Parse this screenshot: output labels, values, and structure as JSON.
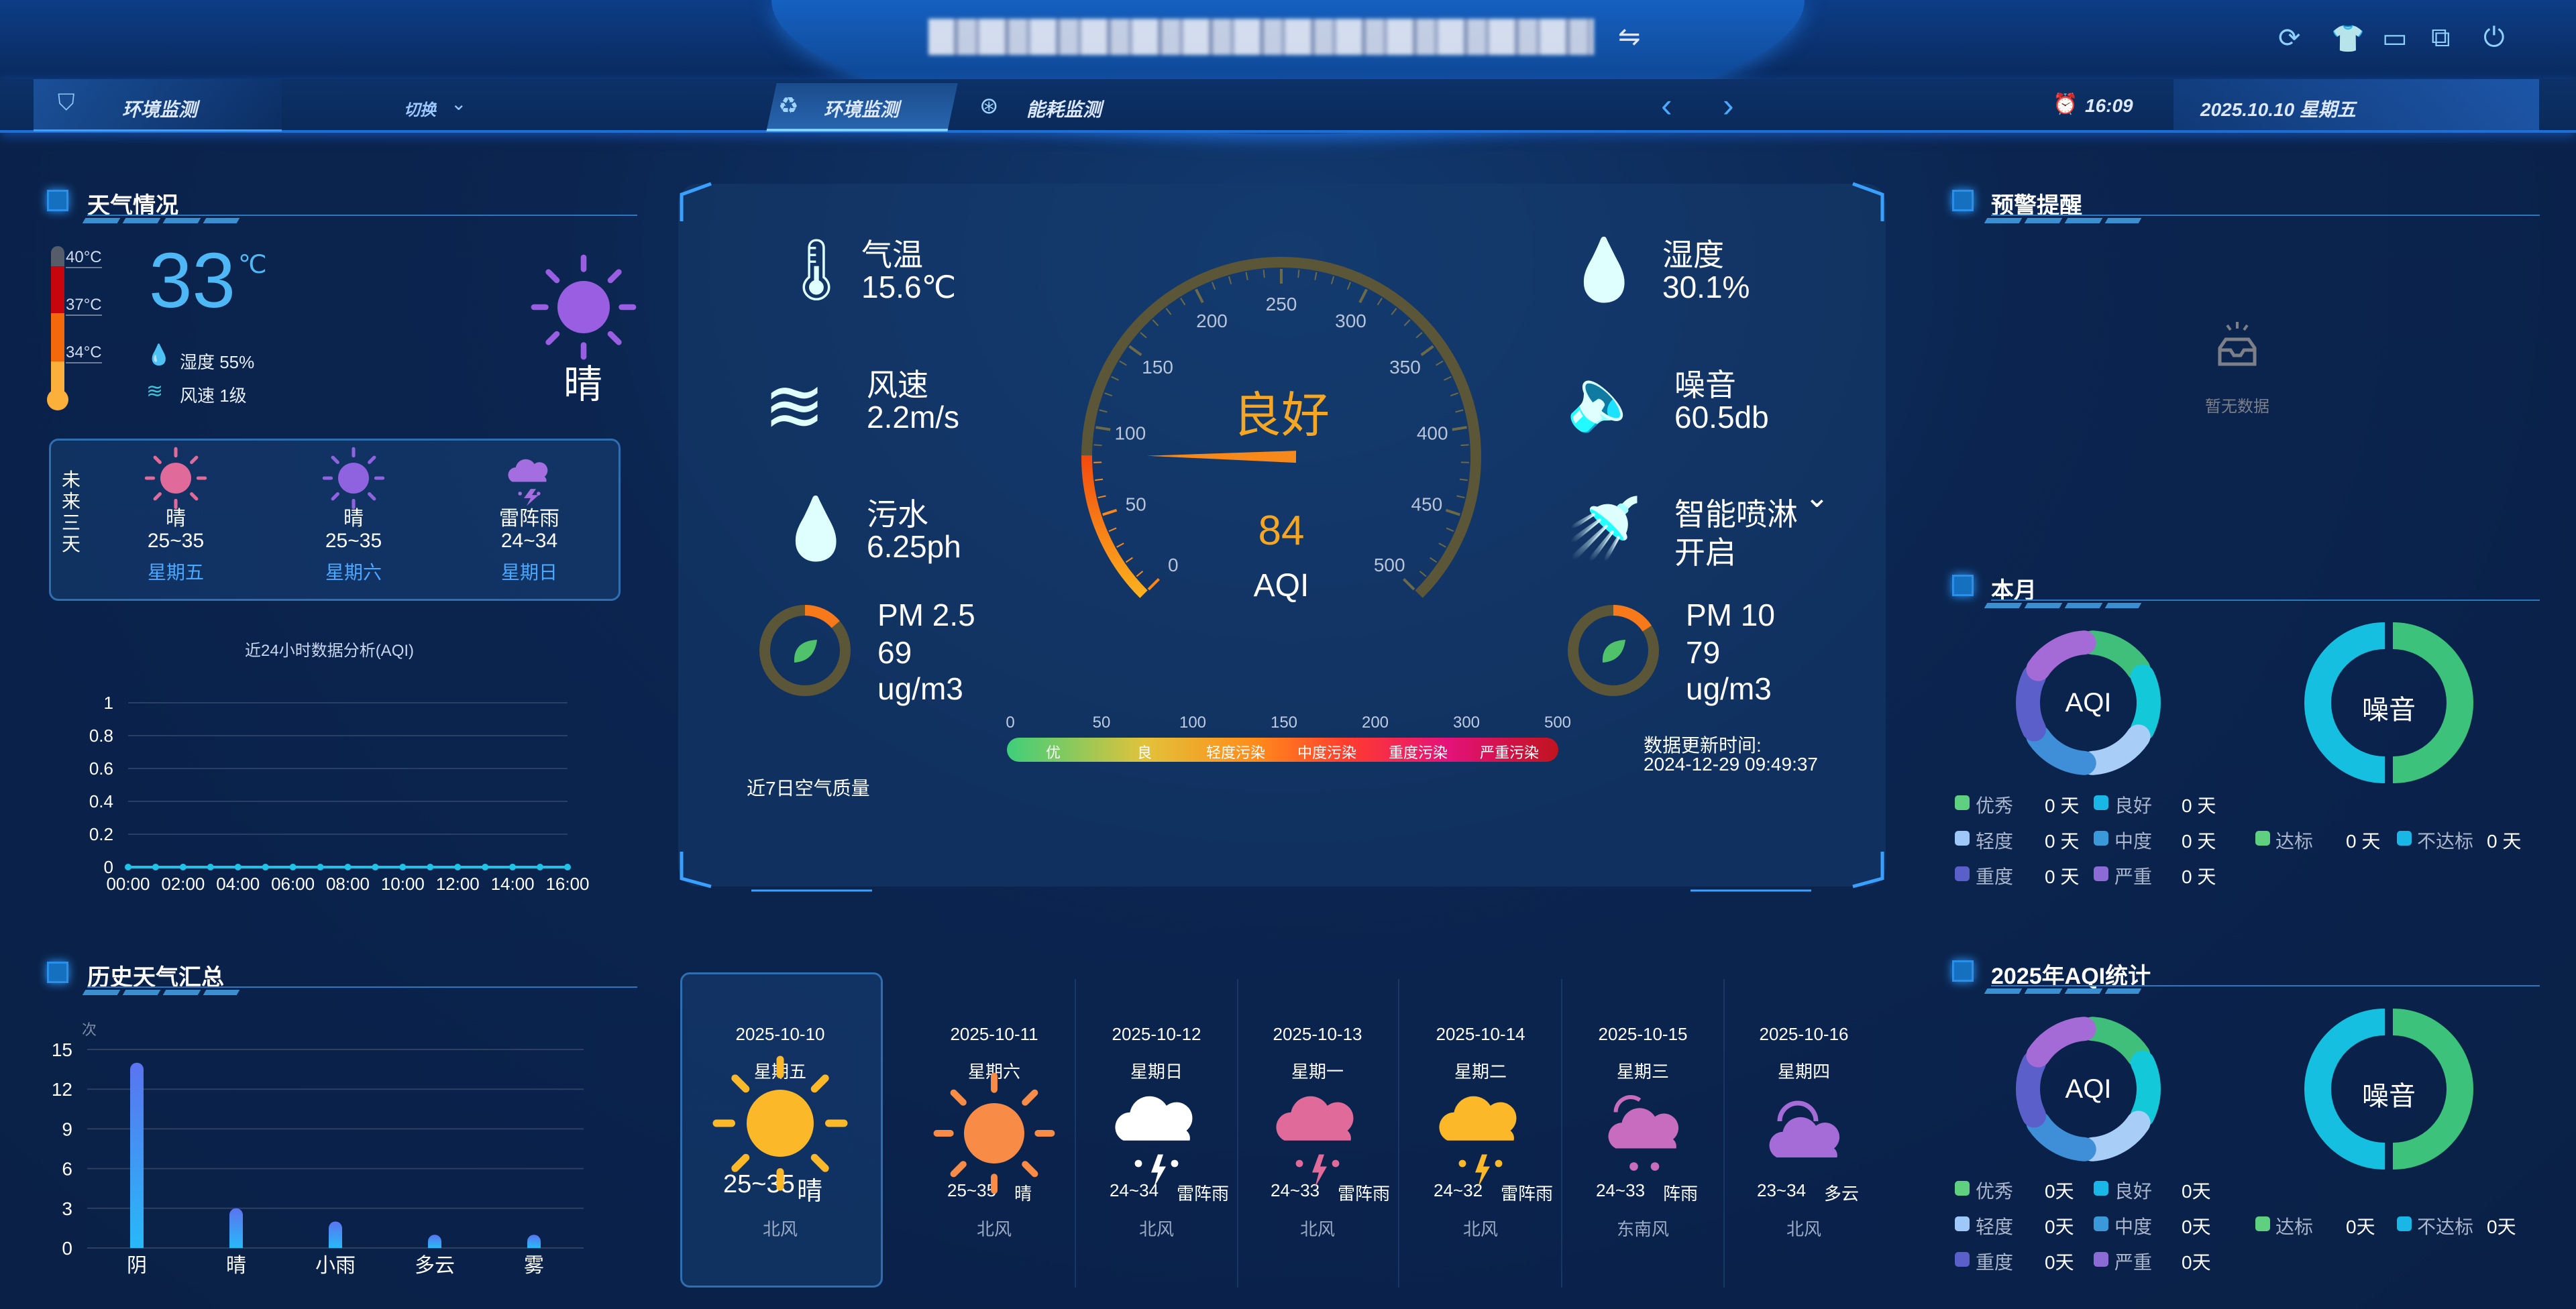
{
  "header": {
    "title_blurred": true,
    "switch_icon": "swap-arrows-icon",
    "module_label": "环境监测",
    "switch_label": "切换",
    "tabs": [
      {
        "label": "环境监测",
        "active": true,
        "icon": "recycle-icon"
      },
      {
        "label": "能耗监测",
        "active": false,
        "icon": "energy-icon"
      }
    ],
    "time": "16:09",
    "date": "2025.10.10 星期五",
    "toolbar_icons": [
      "refresh-icon",
      "shirt-icon",
      "monitor-icon",
      "screen-icon",
      "power-icon"
    ]
  },
  "weather": {
    "title": "天气情况",
    "thermo_labels": [
      "40°C",
      "37°C",
      "34°C"
    ],
    "temp": "33",
    "temp_unit": "℃",
    "humidity": "湿度 55%",
    "wind": "风速 1级",
    "condition": "晴",
    "future_label": "未来三天",
    "future": [
      {
        "cond": "晴",
        "temp": "25~35",
        "day": "星期五",
        "icon": "sun",
        "color": "#e06a9a"
      },
      {
        "cond": "晴",
        "temp": "25~35",
        "day": "星期六",
        "icon": "sun",
        "color": "#8f62e0"
      },
      {
        "cond": "雷阵雨",
        "temp": "24~34",
        "day": "星期日",
        "icon": "thunder",
        "color": "#a56ee0"
      }
    ]
  },
  "aqi24": {
    "chart_data": {
      "type": "line",
      "title": "近24小时数据分析(AQI)",
      "x": [
        "00:00",
        "01:00",
        "02:00",
        "03:00",
        "04:00",
        "05:00",
        "06:00",
        "07:00",
        "08:00",
        "09:00",
        "10:00",
        "11:00",
        "12:00",
        "13:00",
        "14:00",
        "15:00",
        "16:00"
      ],
      "x_tick_labels": [
        "00:00",
        "02:00",
        "04:00",
        "06:00",
        "08:00",
        "10:00",
        "12:00",
        "14:00",
        "16:00"
      ],
      "values": [
        0,
        0,
        0,
        0,
        0,
        0,
        0,
        0,
        0,
        0,
        0,
        0,
        0,
        0,
        0,
        0,
        0
      ],
      "y_ticks": [
        "0",
        "0.2",
        "0.4",
        "0.6",
        "0.8",
        "1"
      ],
      "ylim": [
        0,
        1
      ],
      "grid": true,
      "color": "#1fc3e8"
    }
  },
  "history": {
    "title": "历史天气汇总",
    "chart_data": {
      "type": "bar",
      "ylabel": "次",
      "categories": [
        "阴",
        "晴",
        "小雨",
        "多云",
        "雾"
      ],
      "values": [
        14,
        3,
        2,
        1,
        1
      ],
      "y_ticks": [
        "0",
        "3",
        "6",
        "9",
        "12",
        "15"
      ],
      "ylim": [
        0,
        15
      ],
      "grid": true
    }
  },
  "center": {
    "left_items": [
      {
        "label": "气温",
        "value": "15.6℃",
        "icon": "thermometer-icon"
      },
      {
        "label": "风速",
        "value": "2.2m/s",
        "icon": "wind-icon"
      },
      {
        "label": "污水",
        "value": "6.25ph",
        "icon": "water-drop-icon"
      }
    ],
    "right_items": [
      {
        "label": "湿度",
        "value": "30.1%",
        "icon": "humidity-icon"
      },
      {
        "label": "噪音",
        "value": "60.5db",
        "icon": "speaker-icon"
      },
      {
        "label": "智能喷淋",
        "value": "开启",
        "icon": "shower-icon"
      }
    ],
    "pm25": {
      "label": "PM 2.5",
      "value": "69",
      "unit": "ug/m3"
    },
    "pm10": {
      "label": "PM 10",
      "value": "79",
      "unit": "ug/m3"
    },
    "gauge": {
      "status": "良好",
      "value": "84",
      "label": "AQI",
      "min": 0,
      "max": 500,
      "tick_labels": [
        "0",
        "50",
        "100",
        "150",
        "200",
        "250",
        "300",
        "350",
        "400",
        "450",
        "500"
      ],
      "status_color": "#f5a623"
    },
    "scale": {
      "numbers": [
        "0",
        "50",
        "100",
        "150",
        "200",
        "300",
        "500"
      ],
      "levels": [
        "优",
        "良",
        "轻度污染",
        "中度污染",
        "重度污染",
        "严重污染"
      ]
    },
    "update_label": "数据更新时间:",
    "update_time": "2024-12-29 09:49:37",
    "week_label": "近7日空气质量"
  },
  "forecast7": [
    {
      "date": "2025-10-10",
      "day": "星期五",
      "temp": "25~35",
      "cond": "晴",
      "wind": "北风",
      "icon": "sun",
      "color": "#fbb829"
    },
    {
      "date": "2025-10-11",
      "day": "星期六",
      "temp": "25~35",
      "cond": "晴",
      "wind": "北风",
      "icon": "sun",
      "color": "#f88b45"
    },
    {
      "date": "2025-10-12",
      "day": "星期日",
      "temp": "24~34",
      "cond": "雷阵雨",
      "wind": "北风",
      "icon": "thunder",
      "color": "#ffffff"
    },
    {
      "date": "2025-10-13",
      "day": "星期一",
      "temp": "24~33",
      "cond": "雷阵雨",
      "wind": "北风",
      "icon": "thunder",
      "color": "#e06a9a"
    },
    {
      "date": "2025-10-14",
      "day": "星期二",
      "temp": "24~32",
      "cond": "雷阵雨",
      "wind": "北风",
      "icon": "thunder",
      "color": "#fbb829"
    },
    {
      "date": "2025-10-15",
      "day": "星期三",
      "temp": "24~33",
      "cond": "阵雨",
      "wind": "东南风",
      "icon": "shower",
      "color": "#c86cc0"
    },
    {
      "date": "2025-10-16",
      "day": "星期四",
      "temp": "23~34",
      "cond": "多云",
      "wind": "北风",
      "icon": "cloudy",
      "color": "#a56bd6"
    }
  ],
  "alerts": {
    "title": "预警提醒",
    "empty_text": "暂无数据",
    "empty_icon": "empty-inbox-icon"
  },
  "stats": [
    {
      "title": "本月",
      "aqi_label": "AQI",
      "noise_label": "噪音",
      "aqi_legend": [
        {
          "name": "优秀",
          "value": "0 天",
          "color": "#5fd07f"
        },
        {
          "name": "良好",
          "value": "0 天",
          "color": "#19b7e6"
        },
        {
          "name": "轻度",
          "value": "0 天",
          "color": "#9ec8f7"
        },
        {
          "name": "中度",
          "value": "0 天",
          "color": "#3a9ad9"
        },
        {
          "name": "重度",
          "value": "0 天",
          "color": "#5a5fc9"
        },
        {
          "name": "严重",
          "value": "0 天",
          "color": "#8d6bd6"
        }
      ],
      "noise_legend": [
        {
          "name": "达标",
          "value": "0 天",
          "color": "#5fd07f"
        },
        {
          "name": "不达标",
          "value": "0 天",
          "color": "#19b7e6"
        }
      ]
    },
    {
      "title": "2025年AQI统计",
      "aqi_label": "AQI",
      "noise_label": "噪音",
      "aqi_legend": [
        {
          "name": "优秀",
          "value": "0天",
          "color": "#5fd07f"
        },
        {
          "name": "良好",
          "value": "0天",
          "color": "#19b7e6"
        },
        {
          "name": "轻度",
          "value": "0天",
          "color": "#9ec8f7"
        },
        {
          "name": "中度",
          "value": "0天",
          "color": "#3a9ad9"
        },
        {
          "name": "重度",
          "value": "0天",
          "color": "#5a5fc9"
        },
        {
          "name": "严重",
          "value": "0天",
          "color": "#8d6bd6"
        }
      ],
      "noise_legend": [
        {
          "name": "达标",
          "value": "0天",
          "color": "#5fd07f"
        },
        {
          "name": "不达标",
          "value": "0天",
          "color": "#19b7e6"
        }
      ]
    }
  ]
}
